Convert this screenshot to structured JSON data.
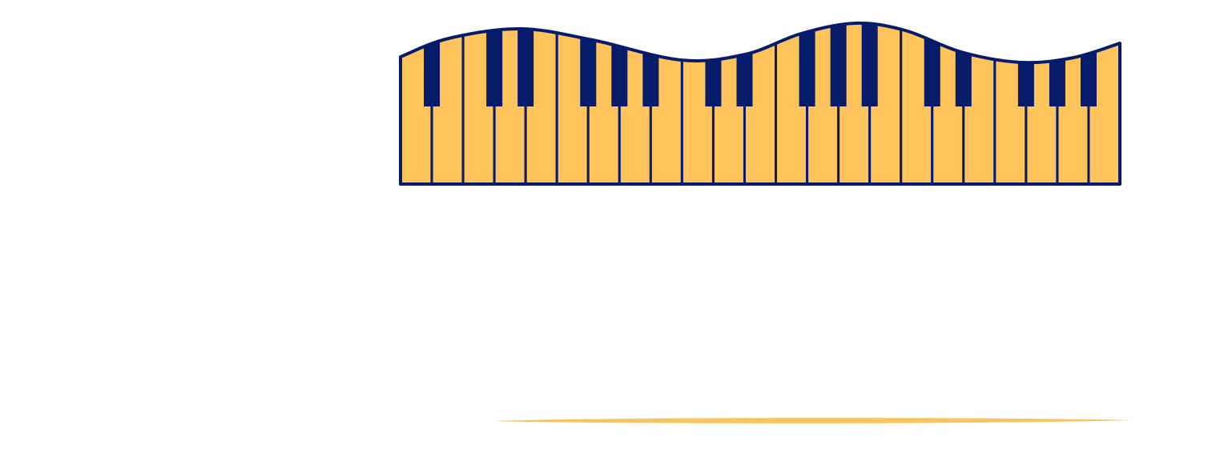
{
  "colors": {
    "background": "#ffffff",
    "white_key_fill": "#FEC35A",
    "black_key_fill": "#071B6B",
    "outline": "#071B6B",
    "underline_accent": "#F8C45E"
  },
  "keyboard": {
    "white_key_count": 23,
    "black_key_count": 16,
    "black_key_positions_after_white_index": [
      0,
      2,
      3,
      5,
      6,
      7,
      9,
      10,
      12,
      13,
      14,
      16,
      17,
      19,
      20,
      21
    ]
  },
  "decoration": {
    "underline_icon": "tapered-line"
  }
}
